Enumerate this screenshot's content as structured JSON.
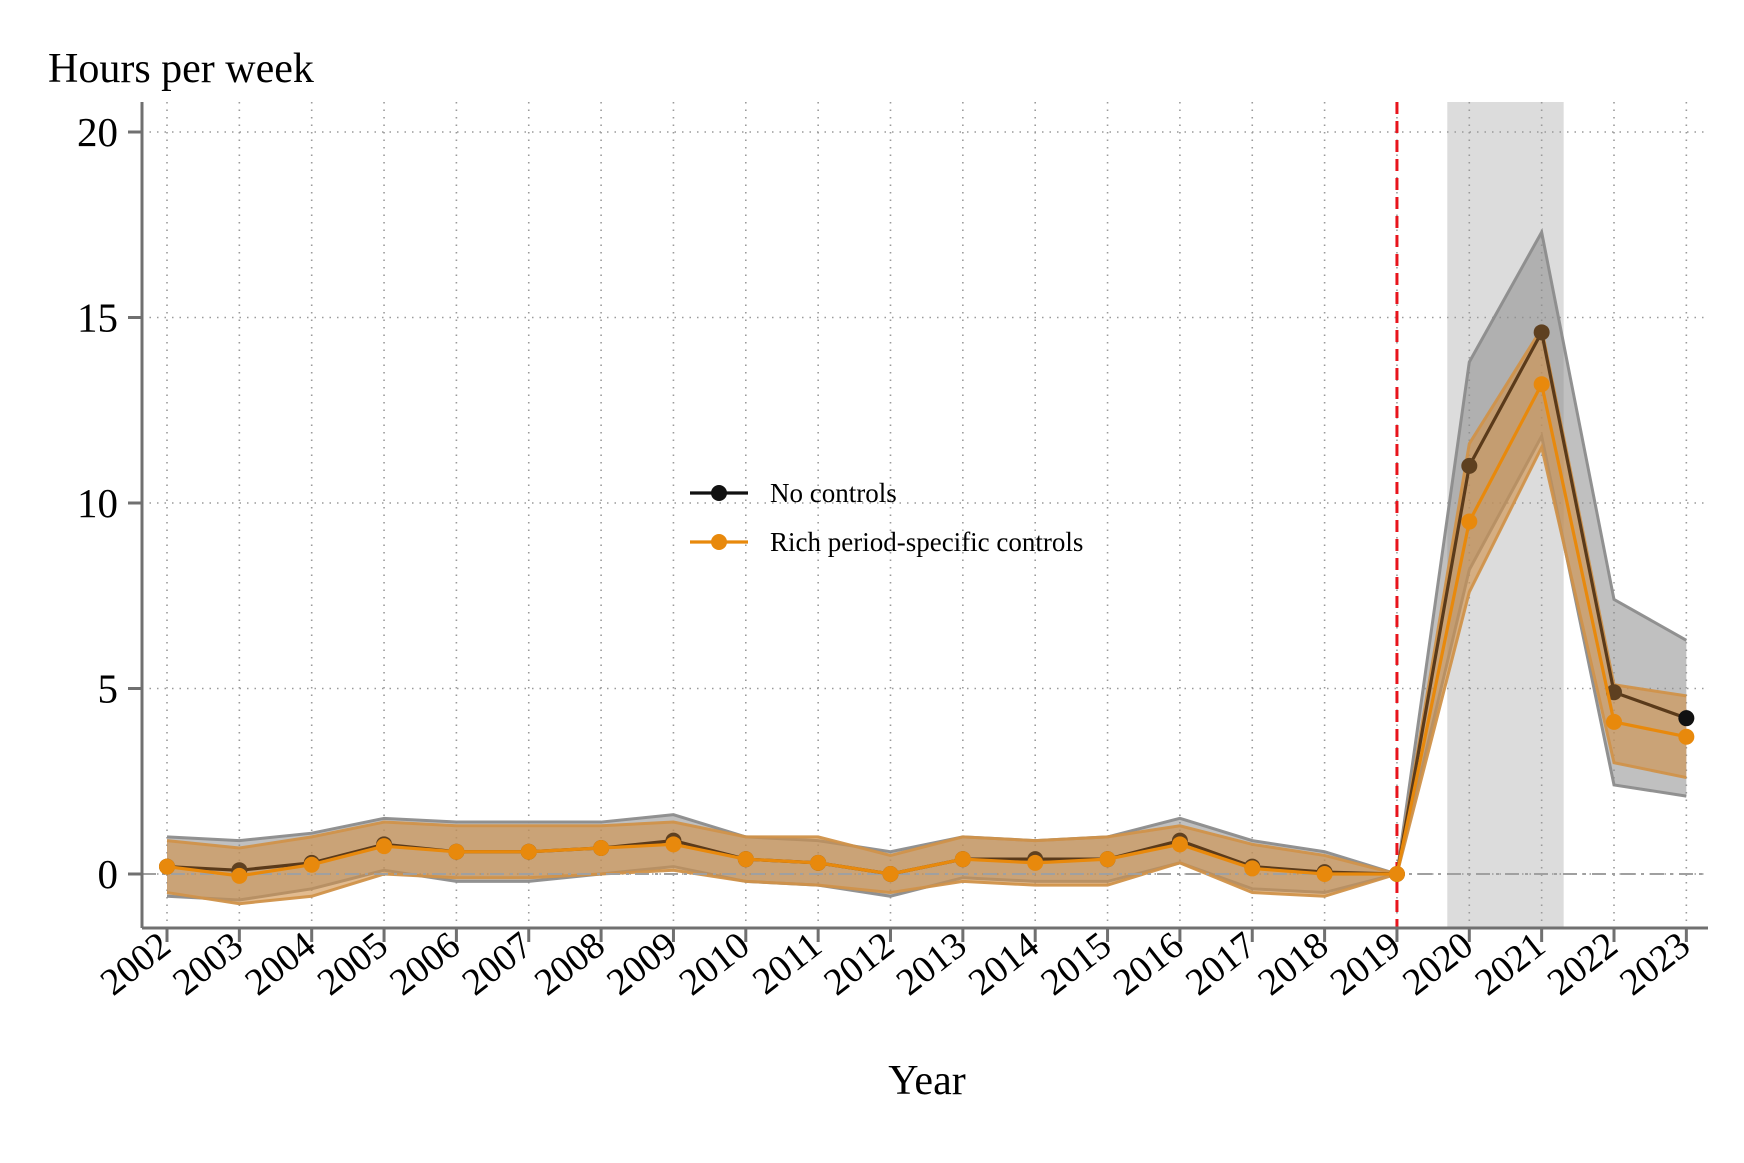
{
  "chart_data": {
    "type": "line",
    "title": "",
    "ylabel": "Hours per week",
    "xlabel": "Year",
    "ylim": [
      -1.5,
      20.7
    ],
    "yticks": [
      0,
      5,
      10,
      15,
      20
    ],
    "x": [
      2002,
      2003,
      2004,
      2005,
      2006,
      2007,
      2008,
      2009,
      2010,
      2011,
      2012,
      2013,
      2014,
      2015,
      2016,
      2017,
      2018,
      2019,
      2020,
      2021,
      2022,
      2023
    ],
    "xtick_labels": [
      "2002",
      "2003",
      "2004",
      "2005",
      "2006",
      "2007",
      "2008",
      "2009",
      "2010",
      "2011",
      "2012",
      "2013",
      "2014",
      "2015",
      "2016",
      "2017",
      "2018",
      "2019",
      "2020",
      "2021",
      "2022",
      "2023"
    ],
    "grid": true,
    "reference_line_year": 2019,
    "shaded_period": [
      2020,
      2021
    ],
    "legend": {
      "position": "center"
    },
    "series": [
      {
        "name": "No controls",
        "color": "#111111",
        "band_color": "#8c8c8c",
        "values": [
          0.2,
          0.1,
          0.3,
          0.8,
          0.6,
          0.6,
          0.7,
          0.9,
          0.4,
          0.3,
          0.0,
          0.4,
          0.4,
          0.4,
          0.9,
          0.2,
          0.05,
          0.0,
          11.0,
          14.6,
          4.9,
          4.2
        ],
        "ci_lower": [
          -0.6,
          -0.7,
          -0.4,
          0.1,
          -0.2,
          -0.2,
          0.0,
          0.2,
          -0.2,
          -0.3,
          -0.6,
          -0.1,
          -0.2,
          -0.2,
          0.3,
          -0.4,
          -0.5,
          0.0,
          8.2,
          11.8,
          2.4,
          2.1
        ],
        "ci_upper": [
          1.0,
          0.9,
          1.1,
          1.5,
          1.4,
          1.4,
          1.4,
          1.6,
          1.0,
          0.9,
          0.6,
          1.0,
          0.9,
          1.0,
          1.5,
          0.9,
          0.6,
          0.0,
          13.8,
          17.3,
          7.4,
          6.3
        ]
      },
      {
        "name": "Rich period-specific controls",
        "color": "#e8890c",
        "band_color": "#d0924a",
        "values": [
          0.2,
          -0.05,
          0.25,
          0.75,
          0.6,
          0.6,
          0.7,
          0.8,
          0.4,
          0.3,
          0.0,
          0.4,
          0.3,
          0.4,
          0.8,
          0.15,
          0.0,
          0.0,
          9.5,
          13.2,
          4.1,
          3.7
        ],
        "ci_lower": [
          -0.5,
          -0.8,
          -0.6,
          0.0,
          -0.1,
          -0.1,
          0.0,
          0.1,
          -0.2,
          -0.3,
          -0.5,
          -0.2,
          -0.3,
          -0.3,
          0.3,
          -0.5,
          -0.6,
          0.0,
          7.6,
          11.5,
          3.0,
          2.6
        ],
        "ci_upper": [
          0.9,
          0.7,
          1.0,
          1.4,
          1.3,
          1.3,
          1.3,
          1.4,
          1.0,
          1.0,
          0.5,
          1.0,
          0.9,
          1.0,
          1.3,
          0.8,
          0.5,
          0.0,
          11.6,
          14.7,
          5.1,
          4.8
        ]
      }
    ]
  }
}
